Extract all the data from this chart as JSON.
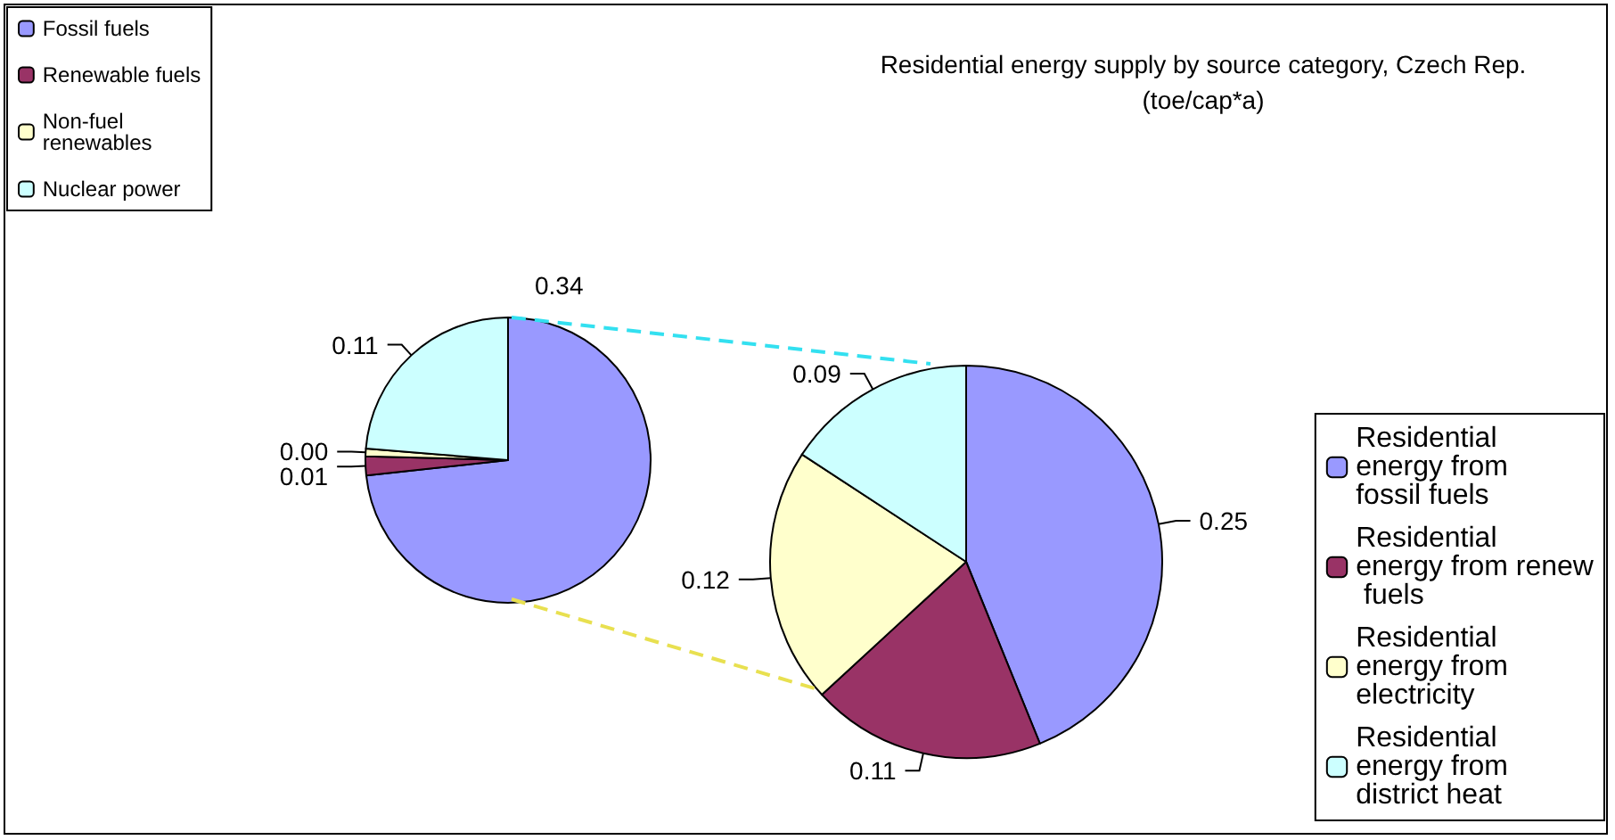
{
  "chart_data": [
    {
      "type": "pie",
      "categories": [
        "Fossil fuels",
        "Renewable fuels",
        "Non-fuel renewables",
        "Nuclear power"
      ],
      "values": [
        0.34,
        0.01,
        0.004,
        0.11
      ],
      "value_labels": [
        "0.34",
        "0.01",
        "0.00",
        "0.11"
      ],
      "colors": [
        "#9999ff",
        "#993366",
        "#ffffcc",
        "#ccffff"
      ],
      "legend": "top left"
    },
    {
      "type": "pie",
      "title": "Residential energy supply by source category, Czech Rep.",
      "subtitle": "(toe/cap*a)",
      "categories": [
        "Residential energy from fossil fuels",
        "Residential energy from renew fuels",
        "Residential energy from electricity",
        "Residential energy from district heat"
      ],
      "values": [
        0.25,
        0.11,
        0.12,
        0.09
      ],
      "value_labels": [
        "0.25",
        "0.11",
        "0.12",
        "0.09"
      ],
      "colors": [
        "#9999ff",
        "#993366",
        "#ffffcc",
        "#ccffff"
      ],
      "legend": "right"
    }
  ]
}
